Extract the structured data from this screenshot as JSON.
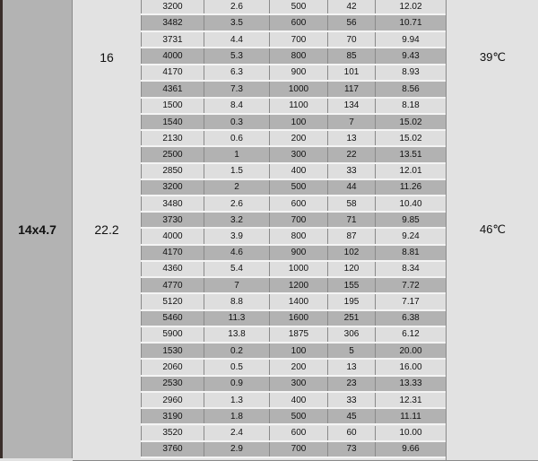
{
  "size_label": "14x4.7",
  "colors": {
    "dark_row": "#b2b2b2",
    "light_row": "#dedede",
    "size_column": "#b3b3b3"
  },
  "sections": [
    {
      "label": "16",
      "temp": "39℃",
      "first_row_dark": false,
      "rows": [
        [
          "3200",
          "2.6",
          "500",
          "42",
          "12.02"
        ],
        [
          "3482",
          "3.5",
          "600",
          "56",
          "10.71"
        ],
        [
          "3731",
          "4.4",
          "700",
          "70",
          "9.94"
        ],
        [
          "4000",
          "5.3",
          "800",
          "85",
          "9.43"
        ],
        [
          "4170",
          "6.3",
          "900",
          "101",
          "8.93"
        ],
        [
          "4361",
          "7.3",
          "1000",
          "117",
          "8.56"
        ],
        [
          "1500",
          "8.4",
          "1100",
          "134",
          "8.18"
        ]
      ]
    },
    {
      "label": "22.2",
      "temp": "46℃",
      "first_row_dark": true,
      "rows": [
        [
          "1540",
          "0.3",
          "100",
          "7",
          "15.02"
        ],
        [
          "2130",
          "0.6",
          "200",
          "13",
          "15.02"
        ],
        [
          "2500",
          "1",
          "300",
          "22",
          "13.51"
        ],
        [
          "2850",
          "1.5",
          "400",
          "33",
          "12.01"
        ],
        [
          "3200",
          "2",
          "500",
          "44",
          "11.26"
        ],
        [
          "3480",
          "2.6",
          "600",
          "58",
          "10.40"
        ],
        [
          "3730",
          "3.2",
          "700",
          "71",
          "9.85"
        ],
        [
          "4000",
          "3.9",
          "800",
          "87",
          "9.24"
        ],
        [
          "4170",
          "4.6",
          "900",
          "102",
          "8.81"
        ],
        [
          "4360",
          "5.4",
          "1000",
          "120",
          "8.34"
        ],
        [
          "4770",
          "7",
          "1200",
          "155",
          "7.72"
        ],
        [
          "5120",
          "8.8",
          "1400",
          "195",
          "7.17"
        ],
        [
          "5460",
          "11.3",
          "1600",
          "251",
          "6.38"
        ],
        [
          "5900",
          "13.8",
          "1875",
          "306",
          "6.12"
        ]
      ]
    },
    {
      "label": "",
      "temp": "",
      "first_row_dark": true,
      "rows": [
        [
          "1530",
          "0.2",
          "100",
          "5",
          "20.00"
        ],
        [
          "2060",
          "0.5",
          "200",
          "13",
          "16.00"
        ],
        [
          "2530",
          "0.9",
          "300",
          "23",
          "13.33"
        ],
        [
          "2960",
          "1.3",
          "400",
          "33",
          "12.31"
        ],
        [
          "3190",
          "1.8",
          "500",
          "45",
          "11.11"
        ],
        [
          "3520",
          "2.4",
          "600",
          "60",
          "10.00"
        ],
        [
          "3760",
          "2.9",
          "700",
          "73",
          "9.66"
        ]
      ]
    }
  ]
}
